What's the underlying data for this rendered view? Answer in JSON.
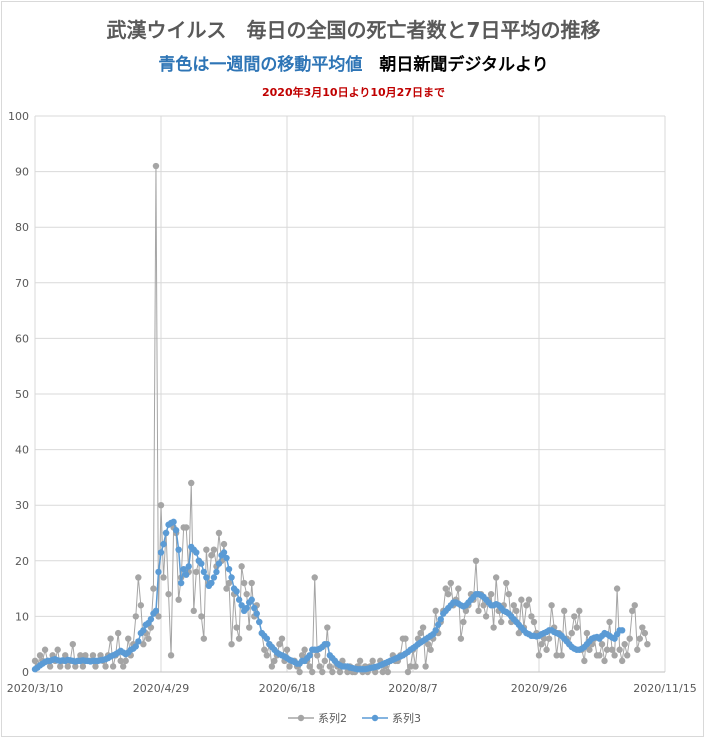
{
  "title": "武漢ウイルス　毎日の全国の死亡者数と7日平均の推移",
  "subtitle_blue": "青色は一週間の移動平均値",
  "subtitle_black": "朝日新聞デジタルより",
  "period_note": "2020年3月10日より10月27日まで",
  "colors": {
    "series2": "#a5a5a5",
    "series3": "#5b9bd5",
    "title": "#595959",
    "note": "#c00000"
  },
  "chart_data": {
    "type": "line",
    "x_axis_type": "date",
    "xlim": [
      "2020-03-10",
      "2020-11-15"
    ],
    "ylim": [
      0,
      100
    ],
    "grid": true,
    "legend_position": "bottom",
    "x_tick_labels": [
      "2020/3/10",
      "2020/4/29",
      "2020/6/18",
      "2020/8/7",
      "2020/9/26",
      "2020/11/15"
    ],
    "y_tick_labels": [
      "0",
      "10",
      "20",
      "30",
      "40",
      "50",
      "60",
      "70",
      "80",
      "90",
      "100"
    ],
    "series_start_date": "2020-03-10",
    "series": [
      {
        "name": "系列2",
        "marker": "circle",
        "values": [
          2,
          1,
          3,
          2,
          4,
          2,
          1,
          3,
          2,
          4,
          1,
          2,
          3,
          1,
          2,
          5,
          1,
          2,
          3,
          1,
          3,
          2,
          2,
          3,
          1,
          2,
          3,
          2,
          1,
          3,
          6,
          1,
          3,
          7,
          2,
          1,
          2,
          6,
          3,
          5,
          10,
          17,
          12,
          5,
          7,
          6,
          8,
          15,
          91,
          10,
          30,
          17,
          25,
          14,
          3,
          26,
          25,
          13,
          17,
          26,
          26,
          18,
          34,
          11,
          18,
          20,
          10,
          6,
          22,
          16,
          21,
          22,
          19,
          25,
          20,
          23,
          15,
          16,
          5,
          14,
          8,
          6,
          19,
          16,
          14,
          8,
          16,
          10,
          12,
          9,
          7,
          4,
          3,
          5,
          1,
          2,
          3,
          5,
          6,
          2,
          4,
          1,
          2,
          2,
          1,
          0,
          3,
          4,
          2,
          1,
          0,
          17,
          3,
          1,
          0,
          2,
          8,
          1,
          0,
          2,
          1,
          0,
          2,
          1,
          0,
          1,
          0,
          0,
          1,
          2,
          0,
          1,
          0,
          1,
          2,
          0,
          1,
          2,
          0,
          1,
          0,
          2,
          3,
          2,
          2,
          3,
          6,
          6,
          0,
          1,
          4,
          1,
          6,
          7,
          8,
          1,
          5,
          4,
          6,
          11,
          7,
          9,
          11,
          15,
          14,
          16,
          12,
          13,
          15,
          6,
          9,
          11,
          12,
          14,
          13,
          20,
          11,
          14,
          12,
          10,
          13,
          14,
          8,
          17,
          11,
          9,
          12,
          16,
          14,
          9,
          12,
          11,
          7,
          13,
          8,
          12,
          13,
          10,
          9,
          7,
          3,
          5,
          6,
          4,
          6,
          12,
          8,
          3,
          7,
          3,
          11,
          6,
          5,
          7,
          10,
          8,
          11,
          4,
          2,
          7,
          4,
          5,
          6,
          3,
          3,
          5,
          2,
          4,
          9,
          4,
          3,
          15,
          4,
          2,
          5,
          3,
          6,
          11,
          12,
          4,
          6,
          8,
          7,
          5
        ]
      },
      {
        "name": "系列3",
        "marker": "circle",
        "values": [
          0.5,
          0.8,
          1.2,
          1.5,
          1.8,
          2,
          2,
          2.2,
          2.3,
          2.1,
          2,
          2.1,
          2,
          2.2,
          2.1,
          2,
          1.9,
          2,
          2,
          2.1,
          2,
          2,
          1.9,
          2,
          2,
          2,
          2.1,
          2.2,
          2.3,
          2.5,
          2.8,
          3,
          3.2,
          3.5,
          3.8,
          3.5,
          3.2,
          3.5,
          4,
          4.2,
          4.6,
          5.5,
          7,
          7.5,
          8.5,
          8.8,
          9.5,
          10.5,
          11,
          18,
          21.5,
          23,
          25,
          26.5,
          26.8,
          27,
          25.5,
          22,
          16,
          18.5,
          17.5,
          19,
          22.5,
          22,
          21.5,
          20,
          19.5,
          18,
          17,
          15.5,
          16,
          17,
          18,
          19.5,
          21,
          21.5,
          20.5,
          18.5,
          17,
          15,
          14.5,
          13,
          12,
          11,
          11.5,
          12.5,
          13,
          11.5,
          10.5,
          9,
          7,
          6.5,
          6,
          5,
          4.5,
          4,
          3.5,
          3.2,
          3,
          2.8,
          2.5,
          2.2,
          2,
          1.8,
          1.5,
          1.5,
          2,
          2,
          2.5,
          3,
          4,
          4,
          4,
          4.2,
          4.5,
          5,
          5,
          3,
          2.5,
          2,
          1.5,
          1.2,
          1,
          1,
          1,
          0.8,
          0.7,
          0.6,
          0.5,
          0.5,
          0.5,
          0.5,
          0.6,
          0.7,
          0.8,
          0.9,
          1,
          1.2,
          1.4,
          1.6,
          1.8,
          2,
          2.2,
          2.4,
          2.6,
          2.8,
          3,
          3.3,
          3.6,
          4,
          4.3,
          4.6,
          5,
          5.3,
          5.6,
          5.9,
          6.2,
          6.5,
          6.8,
          7.5,
          8.5,
          9.5,
          10.5,
          11,
          11.5,
          12,
          12.5,
          12.5,
          12.3,
          12,
          11.8,
          12,
          12.5,
          13,
          13.5,
          14,
          14,
          13.8,
          13.5,
          13,
          12.5,
          12,
          12,
          12.2,
          12,
          11.5,
          11,
          10.8,
          10.5,
          10,
          9.5,
          9,
          8.5,
          8,
          7.5,
          7,
          6.8,
          6.5,
          6.5,
          6.4,
          6.5,
          6.8,
          7,
          7.2,
          7.5,
          7.5,
          7.2,
          7,
          6.8,
          6.5,
          6,
          5.5,
          5,
          4.5,
          4.2,
          4,
          4,
          4.2,
          4.5,
          5,
          5.5,
          6,
          6.2,
          6.3,
          6,
          6.5,
          7,
          6.8,
          6.5,
          6.2,
          6,
          6.8,
          7.5,
          7.5
        ]
      }
    ]
  }
}
